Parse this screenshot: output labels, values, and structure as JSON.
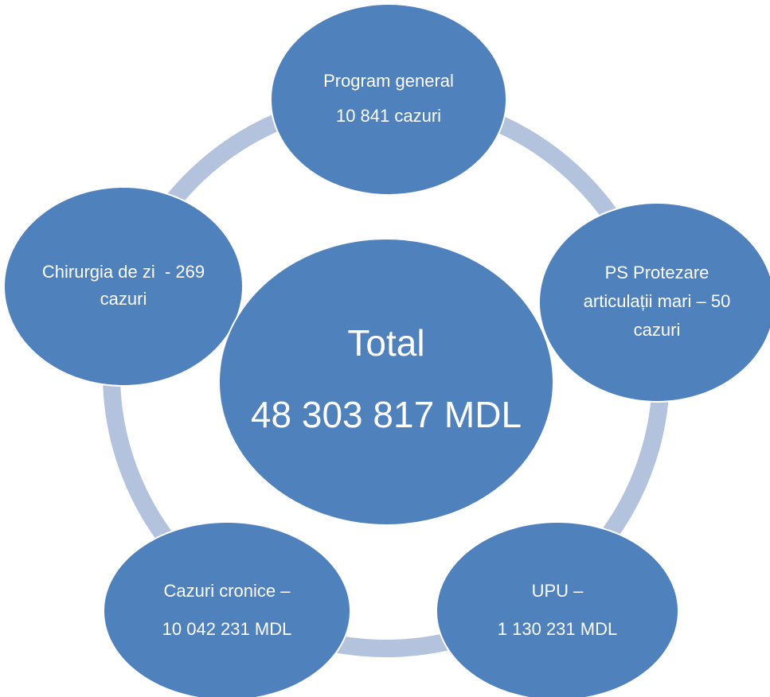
{
  "center": {
    "lines": [
      "Total",
      "48 303 817 MDL"
    ]
  },
  "nodes": [
    {
      "lines": [
        "Program general",
        "10 841 cazuri"
      ]
    },
    {
      "lines": [
        "PS Protezare",
        "articulații mari – 50",
        "cazuri"
      ]
    },
    {
      "lines": [
        "UPU –",
        "1 130 231 MDL"
      ]
    },
    {
      "lines": [
        "Cazuri cronice –",
        "10 042 231 MDL"
      ]
    },
    {
      "lines": [
        "Chirurgia de zi  - 269",
        "cazuri"
      ]
    }
  ]
}
